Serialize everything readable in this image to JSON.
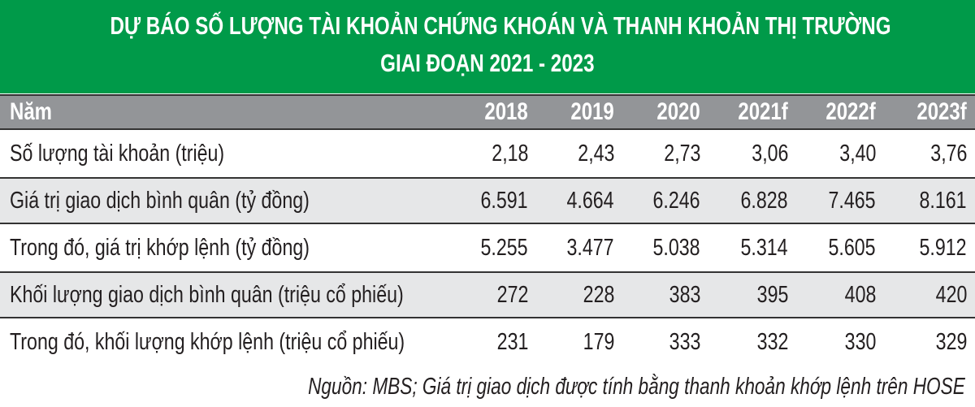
{
  "chart_data": {
    "type": "table",
    "title": "DỰ BÁO SỐ LƯỢNG TÀI KHOẢN CHỨNG KHOÁN VÀ THANH KHOẢN THỊ TRƯỜNG",
    "subtitle": "GIAI ĐOẠN 2021 - 2023",
    "header_label": "Năm",
    "columns": [
      "2018",
      "2019",
      "2020",
      "2021f",
      "2022f",
      "2023f"
    ],
    "rows": [
      {
        "label": "Số lượng tài khoản (triệu)",
        "values": [
          "2,18",
          "2,43",
          "2,73",
          "3,06",
          "3,40",
          "3,76"
        ]
      },
      {
        "label": "Giá trị giao dịch bình quân (tỷ đồng)",
        "values": [
          "6.591",
          "4.664",
          "6.246",
          "6.828",
          "7.465",
          "8.161"
        ]
      },
      {
        "label": "Trong đó, giá trị khớp lệnh (tỷ đồng)",
        "values": [
          "5.255",
          "3.477",
          "5.038",
          "5.314",
          "5.605",
          "5.912"
        ]
      },
      {
        "label": "Khối lượng giao dịch bình quân (triệu cổ phiếu)",
        "values": [
          "272",
          "228",
          "383",
          "395",
          "408",
          "420"
        ]
      },
      {
        "label": "Trong đó, khối lượng khớp lệnh (triệu cổ phiếu)",
        "values": [
          "231",
          "179",
          "333",
          "332",
          "330",
          "329"
        ]
      }
    ],
    "source": "Nguồn: MBS; Giá trị giao dịch được tính bằng thanh khoản khớp lệnh trên HOSE"
  },
  "colors": {
    "title_bg": "#009a49",
    "header_bg": "#939598",
    "alt_row_bg": "#e6e7e8"
  }
}
